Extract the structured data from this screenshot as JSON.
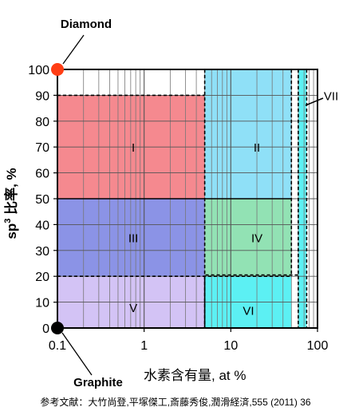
{
  "chart_data": {
    "type": "region-map",
    "x_scale": "log",
    "xlim": [
      0.1,
      100
    ],
    "ylim": [
      0,
      100
    ],
    "xlabel": "水素含有量, at %",
    "ylabel_main": "sp",
    "ylabel_sup": "3",
    "ylabel_rest": " 比率, %",
    "x_ticks": [
      {
        "value": 0.1,
        "label": "0.1"
      },
      {
        "value": 1,
        "label": "1"
      },
      {
        "value": 10,
        "label": "10"
      },
      {
        "value": 100,
        "label": "100"
      }
    ],
    "y_ticks": [
      0,
      10,
      20,
      30,
      40,
      50,
      60,
      70,
      80,
      90,
      100
    ],
    "y_tick_labels": [
      "0",
      "10",
      "20",
      "30",
      "40",
      "50",
      "60",
      "70",
      "80",
      "90",
      "100"
    ],
    "regions": [
      {
        "label": "I",
        "x": [
          0.1,
          5
        ],
        "y": [
          50,
          90
        ],
        "color": "#f5898f"
      },
      {
        "label": "II",
        "x": [
          5,
          50
        ],
        "y": [
          50,
          100
        ],
        "color": "#8fe0f7"
      },
      {
        "label": "III",
        "x": [
          0.1,
          5
        ],
        "y": [
          20,
          50
        ],
        "color": "#8b93e6"
      },
      {
        "label": "IV",
        "x": [
          5,
          50
        ],
        "y": [
          20,
          50
        ],
        "color": "#92e2b4"
      },
      {
        "label": "V",
        "x": [
          0.1,
          5
        ],
        "y": [
          0,
          20
        ],
        "color": "#d3c3f5"
      },
      {
        "label": "VI",
        "x": [
          5,
          50
        ],
        "y": [
          0,
          20
        ],
        "color": "#5cf0f3"
      },
      {
        "label": "VII",
        "x": [
          60,
          75
        ],
        "y": [
          0,
          100
        ],
        "color": "#5cf0f3"
      }
    ],
    "points": [
      {
        "label": "Diamond",
        "x": 0.1,
        "y": 100,
        "color": "#ff3d14"
      },
      {
        "label": "Graphite",
        "x": 0.1,
        "y": 0,
        "color": "#000000"
      }
    ]
  },
  "reference": "参考文献：大竹尚登,平塚傑工,斎藤秀俊,潤滑経済,555 (2011) 36"
}
